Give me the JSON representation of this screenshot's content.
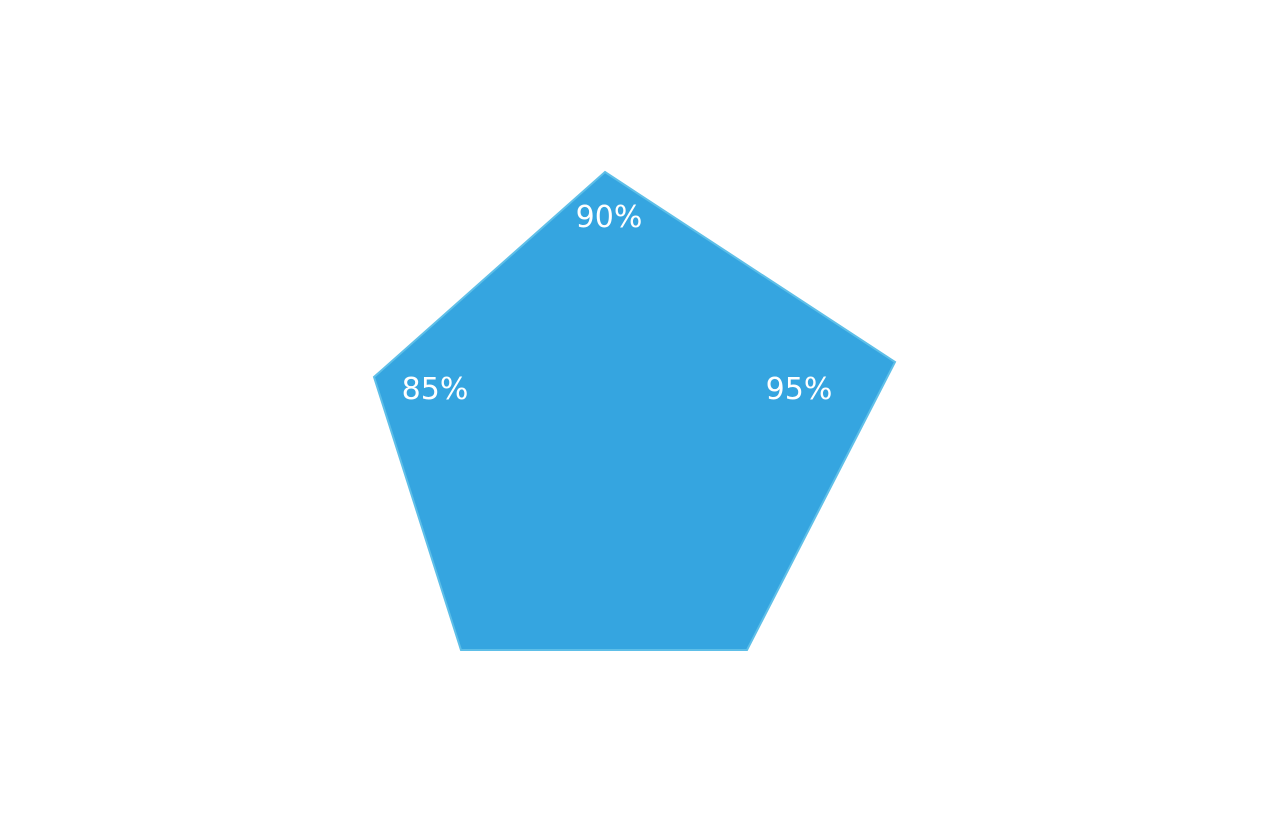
{
  "chart_data": {
    "type": "radar",
    "title": "",
    "series": [
      {
        "values": [
          90,
          95,
          85
        ],
        "labels": [
          "90%",
          "95%",
          "85%"
        ],
        "color": "#35a5e0",
        "stroke": "#5ebfe8"
      }
    ]
  }
}
